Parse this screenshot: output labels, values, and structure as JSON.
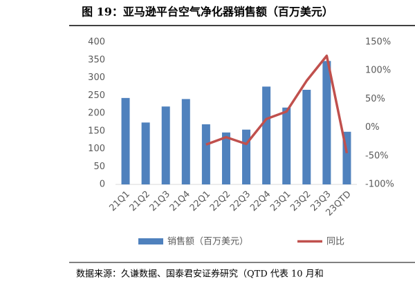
{
  "chart_data": {
    "type": "bar_line",
    "title": "图 19：亚马逊平台空气净化器销售额（百万美元）",
    "source": "数据来源：久谦数据、国泰君安证券研究（QTD 代表 10 月和",
    "categories": [
      "21Q1",
      "21Q2",
      "21Q3",
      "21Q4",
      "22Q1",
      "22Q2",
      "22Q3",
      "22Q4",
      "23Q1",
      "23Q2",
      "23Q3",
      "23QTD"
    ],
    "series": [
      {
        "name": "销售额（百万美元）",
        "color": "#4f81bd",
        "type": "bar",
        "values": [
          243,
          174,
          219,
          240,
          169,
          146,
          154,
          275,
          216,
          266,
          347,
          148
        ]
      },
      {
        "name": "同比",
        "color": "#c0504d",
        "type": "line",
        "axis": "y2",
        "values": [
          null,
          null,
          null,
          null,
          -30,
          -17,
          -29,
          15,
          28,
          82,
          126,
          -45
        ]
      }
    ],
    "ylim": [
      0,
      400
    ],
    "yticks": [
      0,
      50,
      100,
      150,
      200,
      250,
      300,
      350,
      400
    ],
    "y2lim": [
      -100,
      150
    ],
    "y2ticks": [
      {
        "value": -100,
        "label": "-100%"
      },
      {
        "value": -50,
        "label": "-50%"
      },
      {
        "value": 0,
        "label": "0%"
      },
      {
        "value": 50,
        "label": "50%"
      },
      {
        "value": 100,
        "label": "100%"
      },
      {
        "value": 150,
        "label": "150%"
      }
    ],
    "legend": "bottom"
  }
}
